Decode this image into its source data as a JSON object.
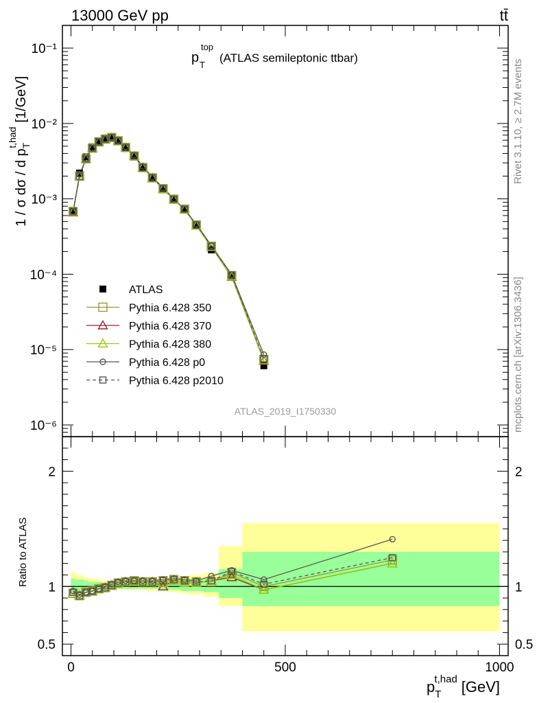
{
  "header": {
    "energy_label": "13000 GeV pp",
    "process_label": "tt̄",
    "plot_title_main": "p",
    "plot_title_sub": "T",
    "plot_title_sup": "top",
    "plot_title_rest": "(ATLAS semileptonic ttbar)",
    "analysis_id": "ATLAS_2019_I1750330",
    "rivet_label": "Rivet 3.1.10, ≥ 2.7M events",
    "mcplots_label": "mcplots.cern.ch [arXiv:1306.3436]"
  },
  "chart_data": [
    {
      "type": "line",
      "panel": "main",
      "ylabel": "1 / σ dσ / d p_T^{t,had} [1/GeV]",
      "yscale": "log",
      "xlim": [
        -20,
        1020
      ],
      "ylim": [
        7e-07,
        0.2
      ],
      "ytick_labels": [
        "10⁻⁶",
        "10⁻⁵",
        "10⁻⁴",
        "10⁻³",
        "10⁻²",
        "10⁻¹"
      ],
      "legend_position": "lower-left",
      "x": [
        5,
        20,
        35,
        50,
        65,
        80,
        95,
        110,
        127.5,
        147.5,
        167.5,
        190,
        215,
        240,
        265,
        292.5,
        327.5,
        375,
        450,
        750
      ],
      "series": [
        {
          "name": "ATLAS",
          "style": "data",
          "color": "#000000",
          "values": [
            0.0007,
            0.0022,
            0.0036,
            0.0049,
            0.0058,
            0.0063,
            0.0065,
            0.0059,
            0.0048,
            0.0037,
            0.0026,
            0.0019,
            0.00135,
            0.00098,
            0.00072,
            0.00044,
            0.00021,
            9.6e-05,
            6.1e-06,
            null
          ]
        },
        {
          "name": "Pythia 6.428 350",
          "style": "open-square",
          "color": "#999933",
          "values": [
            0.00068,
            0.002,
            0.0034,
            0.0047,
            0.0057,
            0.0062,
            0.0065,
            0.0059,
            0.0048,
            0.0037,
            0.0026,
            0.0019,
            0.00136,
            0.00099,
            0.00073,
            0.00045,
            0.000235,
            9.6e-05,
            7.4e-06,
            null
          ]
        },
        {
          "name": "Pythia 6.428 370",
          "style": "open-triangle",
          "color": "#992233",
          "values": [
            0.00066,
            0.002,
            0.0034,
            0.0047,
            0.0057,
            0.0062,
            0.0065,
            0.0059,
            0.0048,
            0.0037,
            0.0026,
            0.0019,
            0.00135,
            0.00098,
            0.00072,
            0.00044,
            0.00023,
            9.2e-05,
            7.1e-06,
            null
          ]
        },
        {
          "name": "Pythia 6.428 380",
          "style": "open-triangle",
          "color": "#99cc00",
          "values": [
            0.00067,
            0.002,
            0.0034,
            0.0047,
            0.0057,
            0.0062,
            0.0065,
            0.0059,
            0.0048,
            0.0037,
            0.0026,
            0.0019,
            0.00135,
            0.00098,
            0.00072,
            0.00044,
            0.00023,
            9.3e-05,
            7.2e-06,
            null
          ]
        },
        {
          "name": "Pythia 6.428 p0",
          "style": "open-circle",
          "color": "#555555",
          "values": [
            0.00068,
            0.0021,
            0.0034,
            0.0047,
            0.0057,
            0.0062,
            0.0066,
            0.006,
            0.0049,
            0.0038,
            0.0027,
            0.00195,
            0.0014,
            0.001,
            0.00073,
            0.00046,
            0.00024,
            9.9e-05,
            8.6e-06,
            null
          ]
        },
        {
          "name": "Pythia 6.428 p2010",
          "style": "dashed-open-square",
          "color": "#555555",
          "values": [
            0.00068,
            0.002,
            0.0034,
            0.0047,
            0.0057,
            0.0062,
            0.0065,
            0.0059,
            0.0048,
            0.0037,
            0.0026,
            0.0019,
            0.00137,
            0.00099,
            0.00073,
            0.00045,
            0.000235,
            9.7e-05,
            7.6e-06,
            null
          ]
        }
      ]
    },
    {
      "type": "line",
      "panel": "ratio",
      "xlabel": "p_T^{t,had} [GeV]",
      "ylabel": "Ratio to ATLAS",
      "xlim": [
        -20,
        1020
      ],
      "ylim": [
        0.4,
        2.3
      ],
      "xtick_labels": [
        "0",
        "500",
        "1000"
      ],
      "ytick_labels": [
        "0.5",
        "1",
        "2"
      ],
      "x": [
        5,
        20,
        35,
        50,
        65,
        80,
        95,
        110,
        127.5,
        147.5,
        167.5,
        190,
        215,
        240,
        265,
        292.5,
        327.5,
        375,
        450,
        750
      ],
      "bands": {
        "edges": [
          0,
          10,
          30,
          40,
          60,
          70,
          90,
          100,
          120,
          135,
          160,
          175,
          205,
          225,
          255,
          275,
          310,
          345,
          400,
          500,
          1000
        ],
        "yellow": [
          [
            0.9,
            1.13
          ],
          [
            0.92,
            1.1
          ],
          [
            0.94,
            1.08
          ],
          [
            0.95,
            1.07
          ],
          [
            0.96,
            1.06
          ],
          [
            0.97,
            1.05
          ],
          [
            0.97,
            1.04
          ],
          [
            0.97,
            1.04
          ],
          [
            0.97,
            1.04
          ],
          [
            0.97,
            1.04
          ],
          [
            0.97,
            1.04
          ],
          [
            0.96,
            1.05
          ],
          [
            0.96,
            1.06
          ],
          [
            0.95,
            1.08
          ],
          [
            0.94,
            1.09
          ],
          [
            0.93,
            1.1
          ],
          [
            0.91,
            1.12
          ],
          [
            0.83,
            1.35
          ],
          [
            0.61,
            1.55
          ],
          [
            0.61,
            1.55
          ]
        ],
        "green": [
          [
            0.94,
            1.07
          ],
          [
            0.95,
            1.06
          ],
          [
            0.96,
            1.05
          ],
          [
            0.97,
            1.04
          ],
          [
            0.97,
            1.04
          ],
          [
            0.98,
            1.03
          ],
          [
            0.98,
            1.03
          ],
          [
            0.98,
            1.03
          ],
          [
            0.98,
            1.03
          ],
          [
            0.98,
            1.03
          ],
          [
            0.98,
            1.03
          ],
          [
            0.98,
            1.03
          ],
          [
            0.97,
            1.04
          ],
          [
            0.97,
            1.04
          ],
          [
            0.96,
            1.05
          ],
          [
            0.96,
            1.06
          ],
          [
            0.95,
            1.07
          ],
          [
            0.9,
            1.15
          ],
          [
            0.83,
            1.3
          ],
          [
            0.83,
            1.3
          ]
        ]
      },
      "series": [
        {
          "name": "Pythia 6.428 350",
          "style": "open-square",
          "color": "#999933",
          "values": [
            0.94,
            0.92,
            0.95,
            0.96,
            0.98,
            0.99,
            1.01,
            1.03,
            1.04,
            1.05,
            1.04,
            1.04,
            1.05,
            1.06,
            1.05,
            1.04,
            1.04,
            1.12,
            1.0,
            1.23
          ]
        },
        {
          "name": "Pythia 6.428 370",
          "style": "open-triangle",
          "color": "#992233",
          "values": [
            0.95,
            0.92,
            0.95,
            0.96,
            0.98,
            0.99,
            1.01,
            1.03,
            1.04,
            1.04,
            1.04,
            1.04,
            1.0,
            1.05,
            1.03,
            1.03,
            1.05,
            1.08,
            0.97,
            1.2
          ]
        },
        {
          "name": "Pythia 6.428 380",
          "style": "open-triangle",
          "color": "#99cc00",
          "values": [
            0.95,
            0.92,
            0.95,
            0.96,
            0.98,
            0.99,
            1.01,
            1.03,
            1.04,
            1.04,
            1.04,
            1.04,
            1.03,
            1.05,
            1.03,
            1.03,
            1.05,
            1.1,
            0.97,
            1.2
          ]
        },
        {
          "name": "Pythia 6.428 p0",
          "style": "open-circle",
          "color": "#555555",
          "values": [
            0.96,
            0.93,
            0.95,
            0.96,
            0.98,
            1.0,
            1.02,
            1.04,
            1.05,
            1.05,
            1.05,
            1.05,
            1.06,
            1.07,
            1.06,
            1.05,
            1.09,
            1.14,
            1.06,
            1.41
          ]
        },
        {
          "name": "Pythia 6.428 p2010",
          "style": "dashed-open-square",
          "color": "#555555",
          "values": [
            0.95,
            0.92,
            0.95,
            0.96,
            0.98,
            0.99,
            1.01,
            1.03,
            1.04,
            1.05,
            1.04,
            1.04,
            1.05,
            1.06,
            1.05,
            1.04,
            1.05,
            1.13,
            1.02,
            1.25
          ]
        }
      ]
    }
  ]
}
